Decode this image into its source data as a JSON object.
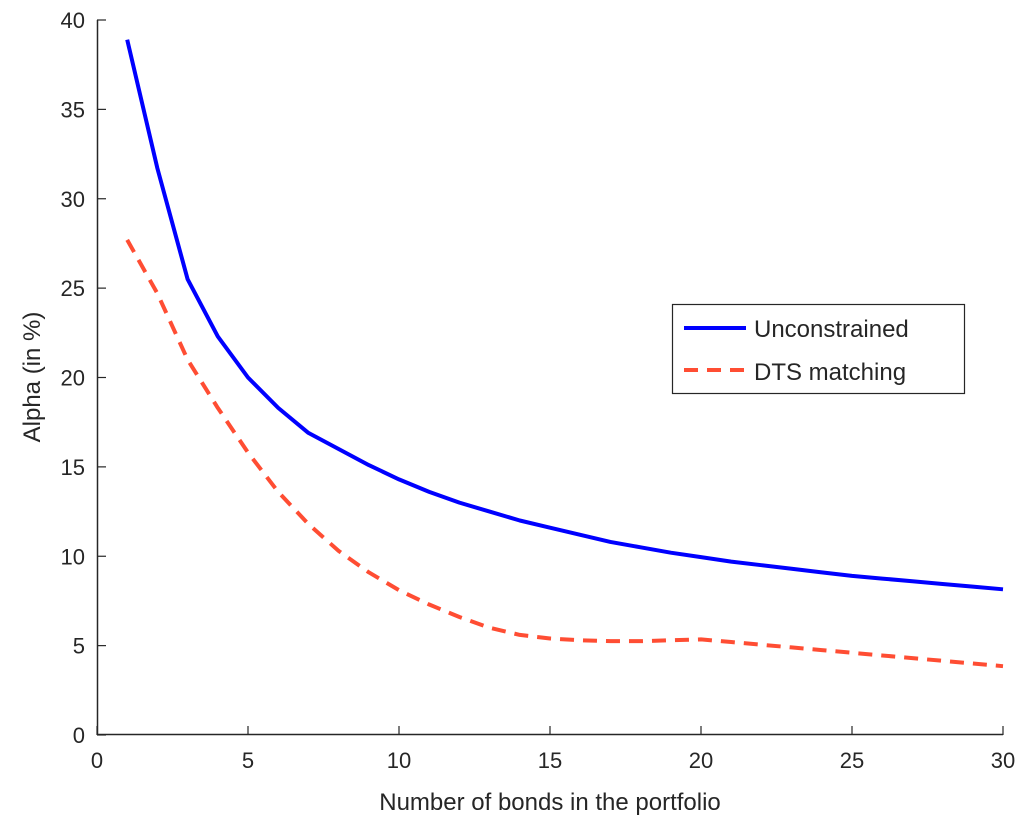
{
  "chart_data": {
    "type": "line",
    "xlabel": "Number of bonds in the portfolio",
    "ylabel": "Alpha (in %)",
    "xlim": [
      0,
      30
    ],
    "ylim": [
      0,
      40
    ],
    "xticks": [
      0,
      5,
      10,
      15,
      20,
      25,
      30
    ],
    "yticks": [
      0,
      5,
      10,
      15,
      20,
      25,
      30,
      35,
      40
    ],
    "grid": false,
    "legend_position": "right",
    "x": [
      1,
      2,
      3,
      4,
      5,
      6,
      7,
      8,
      9,
      10,
      11,
      12,
      13,
      14,
      15,
      16,
      17,
      18,
      19,
      20,
      21,
      22,
      23,
      24,
      25,
      26,
      27,
      28,
      29,
      30
    ],
    "series": [
      {
        "name": "Unconstrained",
        "color": "#0000ff",
        "style": "solid",
        "values": [
          38.9,
          31.7,
          25.5,
          22.3,
          20.0,
          18.3,
          16.9,
          16.0,
          15.1,
          14.3,
          13.6,
          13.0,
          12.5,
          12.0,
          11.6,
          11.2,
          10.8,
          10.5,
          10.2,
          9.95,
          9.7,
          9.5,
          9.3,
          9.1,
          8.9,
          8.75,
          8.6,
          8.45,
          8.3,
          8.15
        ]
      },
      {
        "name": "DTS matching",
        "color": "#ff4d33",
        "style": "dashed",
        "values": [
          27.7,
          24.7,
          21.0,
          18.3,
          15.8,
          13.6,
          11.8,
          10.3,
          9.1,
          8.1,
          7.3,
          6.6,
          6.0,
          5.6,
          5.4,
          5.3,
          5.25,
          5.25,
          5.3,
          5.35,
          5.2,
          5.05,
          4.9,
          4.75,
          4.6,
          4.45,
          4.3,
          4.15,
          4.0,
          3.85
        ]
      }
    ]
  }
}
